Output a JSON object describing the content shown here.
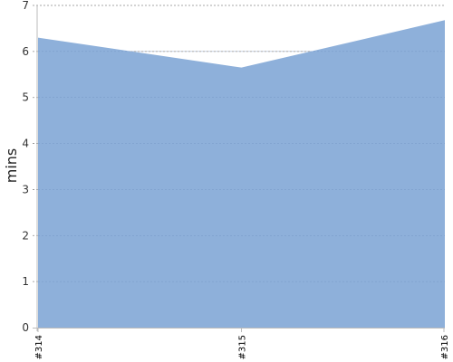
{
  "chart_data": {
    "type": "area",
    "categories": [
      "#314",
      "#315",
      "#316"
    ],
    "series": [
      {
        "values": [
          6.3,
          5.65,
          6.68
        ]
      }
    ],
    "ylabel": "mins",
    "xlabel": "",
    "ylim": [
      0,
      7
    ],
    "yticks": [
      0,
      1,
      2,
      3,
      4,
      5,
      6,
      7
    ],
    "grid": true,
    "grid_style": "dashed-horizontal",
    "colors": {
      "area_fill": "#8eb0da",
      "grid": "#8a8a8a",
      "axis": "#bbbbbb"
    }
  }
}
